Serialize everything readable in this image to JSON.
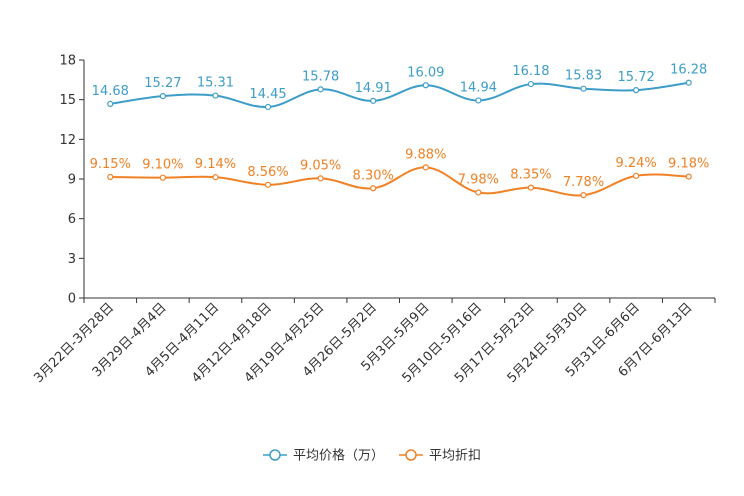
{
  "chart_data": {
    "type": "line",
    "title": "",
    "xlabel": "",
    "ylabel": "",
    "ylim": [
      0,
      18
    ],
    "yticks": [
      0,
      3,
      6,
      9,
      12,
      15,
      18
    ],
    "grid": false,
    "legend_position": "bottom-center",
    "categories": [
      "3月22日-3月28日",
      "3月29日-4月4日",
      "4月5日-4月11日",
      "4月12日-4月18日",
      "4月19日-4月25日",
      "4月26日-5月2日",
      "5月3日-5月9日",
      "5月10日-5月16日",
      "5月17日-5月23日",
      "5月24日-5月30日",
      "5月31日-6月6日",
      "6月7日-6月13日"
    ],
    "series": [
      {
        "name": "平均价格（万）",
        "color": "#3d9dc9",
        "values": [
          14.68,
          15.27,
          15.31,
          14.45,
          15.78,
          14.91,
          16.09,
          14.94,
          16.18,
          15.83,
          15.72,
          16.28
        ],
        "labels": [
          "14.68",
          "15.27",
          "15.31",
          "14.45",
          "15.78",
          "14.91",
          "16.09",
          "14.94",
          "16.18",
          "15.83",
          "15.72",
          "16.28"
        ]
      },
      {
        "name": "平均折扣",
        "color": "#f08125",
        "values": [
          9.15,
          9.1,
          9.14,
          8.56,
          9.05,
          8.3,
          9.88,
          7.98,
          8.35,
          7.78,
          9.24,
          9.18
        ],
        "labels": [
          "9.15%",
          "9.10%",
          "9.14%",
          "8.56%",
          "9.05%",
          "8.30%",
          "9.88%",
          "7.98%",
          "8.35%",
          "7.78%",
          "9.24%",
          "9.18%"
        ]
      }
    ]
  }
}
